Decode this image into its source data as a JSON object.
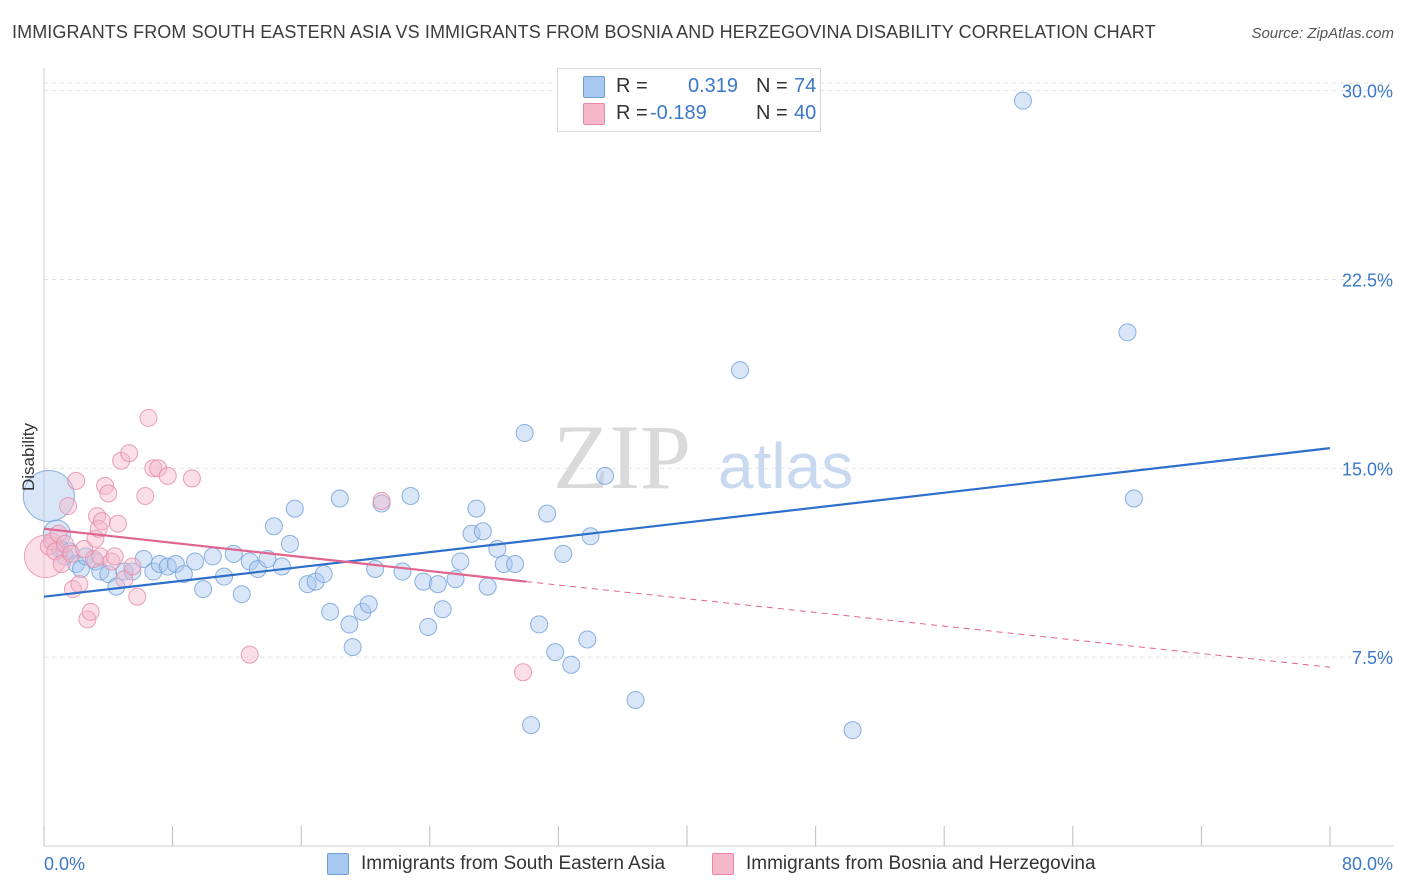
{
  "title": "IMMIGRANTS FROM SOUTH EASTERN ASIA VS IMMIGRANTS FROM BOSNIA AND HERZEGOVINA DISABILITY CORRELATION CHART",
  "source": "Source: ZipAtlas.com",
  "watermark": {
    "zip": "ZIP",
    "atlas": "atlas"
  },
  "legend": {
    "rows": [
      {
        "r_label": "R =",
        "r_value": "0.319",
        "n_label": "N =",
        "n_value": "74",
        "color": "#a9c8f0"
      },
      {
        "r_label": "R =",
        "r_value": "-0.189",
        "n_label": "N =",
        "n_value": "40",
        "color": "#f5b8cb"
      }
    ]
  },
  "bottom_legend": {
    "blue_label": "Immigrants from South Eastern Asia",
    "pink_label": "Immigrants from Bosnia and Herzegovina"
  },
  "colors": {
    "blue_fill": "#a9c8f0",
    "blue_stroke": "#6f9fd8",
    "blue_line": "#2f6fcc",
    "pink_fill": "#f5b8cb",
    "pink_stroke": "#e68aa6",
    "pink_line": "#e0658f",
    "tick_label": "#3a78c9",
    "grid": "#e2e2e2"
  },
  "chart_data": {
    "type": "scatter",
    "ylabel": "Disability",
    "xlim": [
      0,
      80
    ],
    "ylim": [
      0,
      30.5
    ],
    "x_tick_labels": [
      "0.0%",
      "80.0%"
    ],
    "y_ticks": [
      7.5,
      15.0,
      22.5,
      30.0
    ],
    "y_tick_labels": [
      "7.5%",
      "15.0%",
      "22.5%",
      "30.0%"
    ],
    "grid": true,
    "series": [
      {
        "name": "Immigrants from South Eastern Asia",
        "trend": {
          "x": [
            0,
            80
          ],
          "y": [
            9.9,
            15.8
          ],
          "style": "solid"
        },
        "points": [
          [
            0.3,
            13.9,
            3
          ],
          [
            0.8,
            12.4,
            1.6
          ],
          [
            1.0,
            11.8,
            1
          ],
          [
            1.3,
            11.5,
            1
          ],
          [
            1.6,
            11.7,
            1
          ],
          [
            2.0,
            11.2,
            1
          ],
          [
            2.3,
            11.0,
            1
          ],
          [
            2.6,
            11.5,
            1
          ],
          [
            3.2,
            11.3,
            1
          ],
          [
            3.5,
            10.9,
            1
          ],
          [
            4.0,
            10.8,
            1
          ],
          [
            4.5,
            10.3,
            1
          ],
          [
            5.0,
            10.9,
            1
          ],
          [
            5.5,
            10.9,
            1
          ],
          [
            6.2,
            11.4,
            1
          ],
          [
            6.8,
            10.9,
            1
          ],
          [
            7.2,
            11.2,
            1
          ],
          [
            7.7,
            11.1,
            1
          ],
          [
            8.2,
            11.2,
            1
          ],
          [
            8.7,
            10.8,
            1
          ],
          [
            9.4,
            11.3,
            1
          ],
          [
            9.9,
            10.2,
            1
          ],
          [
            10.5,
            11.5,
            1
          ],
          [
            11.2,
            10.7,
            1
          ],
          [
            11.8,
            11.6,
            1
          ],
          [
            12.3,
            10.0,
            1
          ],
          [
            12.8,
            11.3,
            1
          ],
          [
            13.3,
            11.0,
            1
          ],
          [
            13.9,
            11.4,
            1
          ],
          [
            14.3,
            12.7,
            1
          ],
          [
            14.8,
            11.1,
            1
          ],
          [
            15.3,
            12.0,
            1
          ],
          [
            15.6,
            13.4,
            1
          ],
          [
            16.4,
            10.4,
            1
          ],
          [
            16.9,
            10.5,
            1
          ],
          [
            17.4,
            10.8,
            1
          ],
          [
            17.8,
            9.3,
            1
          ],
          [
            18.4,
            13.8,
            1
          ],
          [
            19.0,
            8.8,
            1
          ],
          [
            19.2,
            7.9,
            1
          ],
          [
            19.8,
            9.3,
            1
          ],
          [
            20.2,
            9.6,
            1
          ],
          [
            20.6,
            11.0,
            1
          ],
          [
            21.0,
            13.6,
            1
          ],
          [
            22.3,
            10.9,
            1
          ],
          [
            22.8,
            13.9,
            1
          ],
          [
            23.6,
            10.5,
            1
          ],
          [
            23.9,
            8.7,
            1
          ],
          [
            24.5,
            10.4,
            1
          ],
          [
            24.8,
            9.4,
            1
          ],
          [
            25.6,
            10.6,
            1
          ],
          [
            25.9,
            11.3,
            1
          ],
          [
            26.6,
            12.4,
            1
          ],
          [
            26.9,
            13.4,
            1
          ],
          [
            27.3,
            12.5,
            1
          ],
          [
            27.6,
            10.3,
            1
          ],
          [
            28.2,
            11.8,
            1
          ],
          [
            28.6,
            11.2,
            1
          ],
          [
            29.3,
            11.2,
            1
          ],
          [
            29.9,
            16.4,
            1
          ],
          [
            30.3,
            4.8,
            1
          ],
          [
            30.8,
            8.8,
            1
          ],
          [
            31.3,
            13.2,
            1
          ],
          [
            31.8,
            7.7,
            1
          ],
          [
            32.3,
            11.6,
            1
          ],
          [
            32.8,
            7.2,
            1
          ],
          [
            33.8,
            8.2,
            1
          ],
          [
            34.0,
            12.3,
            1
          ],
          [
            34.9,
            14.7,
            1
          ],
          [
            36.8,
            5.8,
            1
          ],
          [
            43.3,
            18.9,
            1
          ],
          [
            50.3,
            4.6,
            1
          ],
          [
            60.9,
            29.6,
            1
          ],
          [
            67.8,
            13.8,
            1
          ],
          [
            67.4,
            20.4,
            1
          ]
        ]
      },
      {
        "name": "Immigrants from Bosnia and Herzegovina",
        "trend": {
          "x": [
            0,
            30
          ],
          "y": [
            12.6,
            10.5
          ],
          "style": "solid",
          "dashed_to": [
            80,
            7.1
          ]
        },
        "points": [
          [
            0.1,
            11.5,
            2.5
          ],
          [
            0.3,
            11.9,
            1
          ],
          [
            0.5,
            12.1,
            1
          ],
          [
            0.7,
            11.7,
            1
          ],
          [
            0.9,
            12.4,
            1
          ],
          [
            1.1,
            11.2,
            1
          ],
          [
            1.3,
            12.0,
            1
          ],
          [
            1.5,
            13.5,
            1
          ],
          [
            1.7,
            11.6,
            1
          ],
          [
            1.8,
            10.2,
            1
          ],
          [
            2.0,
            14.5,
            1
          ],
          [
            2.2,
            10.4,
            1
          ],
          [
            2.5,
            11.8,
            1
          ],
          [
            2.7,
            9.0,
            1
          ],
          [
            2.9,
            9.3,
            1
          ],
          [
            3.1,
            11.4,
            1
          ],
          [
            3.2,
            12.2,
            1
          ],
          [
            3.3,
            13.1,
            1
          ],
          [
            3.4,
            12.6,
            1
          ],
          [
            3.5,
            11.5,
            1
          ],
          [
            3.6,
            12.9,
            1
          ],
          [
            3.8,
            14.3,
            1
          ],
          [
            4.0,
            14.0,
            1
          ],
          [
            4.2,
            11.3,
            1
          ],
          [
            4.4,
            11.5,
            1
          ],
          [
            4.6,
            12.8,
            1
          ],
          [
            4.8,
            15.3,
            1
          ],
          [
            5.0,
            10.6,
            1
          ],
          [
            5.3,
            15.6,
            1
          ],
          [
            5.5,
            11.1,
            1
          ],
          [
            5.8,
            9.9,
            1
          ],
          [
            6.3,
            13.9,
            1
          ],
          [
            6.5,
            17.0,
            1
          ],
          [
            6.8,
            15.0,
            1
          ],
          [
            7.1,
            15.0,
            1
          ],
          [
            7.7,
            14.7,
            1
          ],
          [
            9.2,
            14.6,
            1
          ],
          [
            12.8,
            7.6,
            1
          ],
          [
            21.0,
            13.7,
            1
          ],
          [
            29.8,
            6.9,
            1
          ]
        ]
      }
    ]
  }
}
